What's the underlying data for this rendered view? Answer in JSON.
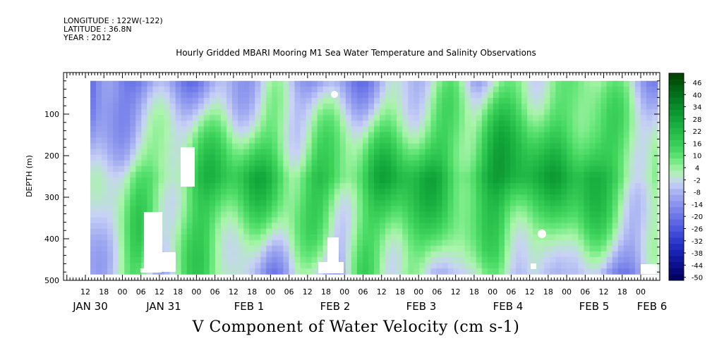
{
  "header": {
    "longitude": "LONGITUDE : 122W(-122)",
    "latitude": "LATITUDE : 36.8N",
    "year": "YEAR : 2012"
  },
  "chart_data": {
    "type": "heatmap",
    "title": "Hourly Gridded MBARI Mooring M1 Sea Water Temperature and Salinity Observations",
    "xlabel": "V Component of Water Velocity (cm s-1)",
    "ylabel": "DEPTH (m)",
    "ylim": [
      500,
      0
    ],
    "yticks": [
      100,
      200,
      300,
      400,
      500
    ],
    "xticks": [
      "12",
      "18",
      "00",
      "06",
      "12",
      "18",
      "00",
      "06",
      "12",
      "18",
      "00",
      "06",
      "12",
      "18",
      "00",
      "06",
      "12",
      "18",
      "00",
      "06",
      "12",
      "18",
      "00",
      "06",
      "12",
      "18",
      "00",
      "06",
      "12",
      "18",
      "00"
    ],
    "date_labels": [
      "JAN 30",
      "JAN 31",
      "FEB  1",
      "FEB  2",
      "FEB  3",
      "FEB  4",
      "FEB  5",
      "FEB  6"
    ],
    "data_extent": {
      "x_start": "JAN 30 03",
      "x_end": "FEB 6 00",
      "depth_min": 20,
      "depth_max": 485
    },
    "colorbar": {
      "labels": [
        "46",
        "40",
        "34",
        "28",
        "22",
        "16",
        "10",
        "4",
        "-2",
        "-8",
        "-14",
        "-20",
        "-26",
        "-32",
        "-38",
        "-44",
        "-50"
      ],
      "min": -50,
      "max": 52
    },
    "columns": [
      {
        "x": 0.0,
        "surf": -22,
        "mid": -10,
        "deep": -8
      },
      {
        "x": 0.04,
        "surf": -18,
        "mid": 2,
        "deep": 6
      },
      {
        "x": 0.08,
        "surf": -16,
        "mid": 12,
        "deep": 10
      },
      {
        "x": 0.12,
        "surf": -14,
        "mid": 8,
        "deep": -6
      },
      {
        "x": 0.16,
        "surf": -12,
        "mid": 14,
        "deep": 4
      },
      {
        "x": 0.2,
        "surf": -10,
        "mid": 18,
        "deep": 12
      },
      {
        "x": 0.24,
        "surf": -8,
        "mid": 20,
        "deep": 6
      },
      {
        "x": 0.28,
        "surf": -6,
        "mid": 22,
        "deep": -8
      },
      {
        "x": 0.32,
        "surf": -4,
        "mid": 18,
        "deep": -10
      },
      {
        "x": 0.36,
        "surf": -8,
        "mid": 14,
        "deep": 2
      },
      {
        "x": 0.4,
        "surf": -10,
        "mid": 20,
        "deep": -6
      },
      {
        "x": 0.44,
        "surf": -12,
        "mid": 16,
        "deep": -8
      },
      {
        "x": 0.48,
        "surf": -10,
        "mid": 14,
        "deep": 8
      },
      {
        "x": 0.52,
        "surf": -6,
        "mid": 22,
        "deep": 4
      },
      {
        "x": 0.56,
        "surf": -4,
        "mid": 26,
        "deep": 10
      },
      {
        "x": 0.6,
        "surf": -2,
        "mid": 24,
        "deep": -6
      },
      {
        "x": 0.64,
        "surf": 2,
        "mid": 18,
        "deep": 6
      },
      {
        "x": 0.68,
        "surf": -4,
        "mid": 22,
        "deep": -8
      },
      {
        "x": 0.72,
        "surf": 4,
        "mid": 28,
        "deep": 10
      },
      {
        "x": 0.76,
        "surf": 10,
        "mid": 30,
        "deep": -8
      },
      {
        "x": 0.8,
        "surf": 6,
        "mid": 20,
        "deep": -10
      },
      {
        "x": 0.84,
        "surf": 2,
        "mid": 24,
        "deep": 6
      },
      {
        "x": 0.88,
        "surf": 8,
        "mid": 30,
        "deep": -4
      },
      {
        "x": 0.92,
        "surf": 4,
        "mid": 16,
        "deep": -10
      },
      {
        "x": 0.96,
        "surf": -4,
        "mid": 10,
        "deep": -14
      },
      {
        "x": 1.0,
        "surf": -8,
        "mid": 6,
        "deep": -8
      }
    ]
  }
}
